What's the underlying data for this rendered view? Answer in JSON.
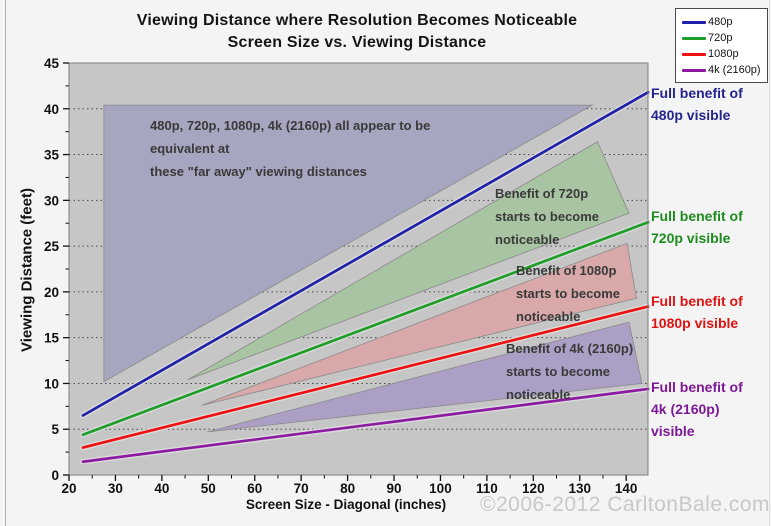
{
  "title": {
    "line1": "Viewing Distance where Resolution Becomes Noticeable",
    "line2": "Screen Size vs. Viewing Distance"
  },
  "watermark": "©2006-2012 CarltonBale.com",
  "legend": {
    "entries": [
      {
        "label": "480p",
        "color": "#2020a8"
      },
      {
        "label": "720p",
        "color": "#1e9e28"
      },
      {
        "label": "1080p",
        "color": "#ee1111"
      },
      {
        "label": "4k (2160p)",
        "color": "#8c1aa0"
      }
    ]
  },
  "chart_data": {
    "type": "line",
    "title": "Viewing Distance where Resolution Becomes Noticeable — Screen Size vs. Viewing Distance",
    "xlabel": "Screen Size - Diagonal (inches)",
    "ylabel": "Viewing Distance (feet)",
    "xlim": [
      20,
      144.7
    ],
    "ylim": [
      0,
      45
    ],
    "x_major_ticks": [
      20,
      30,
      40,
      50,
      60,
      70,
      80,
      90,
      100,
      110,
      120,
      130,
      140
    ],
    "x_minor_ticks": [
      25,
      35,
      45,
      55,
      65,
      75,
      85,
      95,
      105,
      115,
      125,
      135
    ],
    "y_major_ticks": [
      0,
      5,
      10,
      15,
      20,
      25,
      30,
      35,
      40,
      45
    ],
    "y_minor_ticks": [
      2.5,
      7.5,
      12.5,
      17.5,
      22.5,
      27.5,
      32.5,
      37.5,
      42.5
    ],
    "grid": "horizontal dotted lines every 5 ft",
    "legend_position": "top-right",
    "plot_bg_color": "#c6c6c6",
    "series": [
      {
        "name": "480p",
        "color": "#2020a8",
        "points": [
          [
            23,
            6.5
          ],
          [
            144.7,
            41.8
          ]
        ]
      },
      {
        "name": "720p",
        "color": "#1e9e28",
        "points": [
          [
            23,
            4.4
          ],
          [
            144.7,
            27.6
          ]
        ]
      },
      {
        "name": "1080p",
        "color": "#ee1111",
        "points": [
          [
            23,
            3.0
          ],
          [
            144.7,
            18.4
          ]
        ]
      },
      {
        "name": "4k (2160p)",
        "color": "#8c1aa0",
        "points": [
          [
            23,
            1.45
          ],
          [
            144.7,
            9.4
          ]
        ]
      }
    ],
    "regions": [
      {
        "name": "equivalent-region",
        "fill": "#a6a6c0",
        "points": [
          [
            27.5,
            40.4
          ],
          [
            132.7,
            40.4
          ],
          [
            27.5,
            10.2
          ]
        ]
      },
      {
        "name": "720p-benefit-region",
        "fill": "#a9c4a3",
        "points": [
          [
            45.6,
            10.4
          ],
          [
            133.8,
            36.4
          ],
          [
            140.6,
            28.6
          ]
        ]
      },
      {
        "name": "1080p-benefit-region",
        "fill": "#d9a8a8",
        "points": [
          [
            48.6,
            7.6
          ],
          [
            140.2,
            25.3
          ],
          [
            142.2,
            19.3
          ]
        ]
      },
      {
        "name": "4k-benefit-region",
        "fill": "#ac9fc5",
        "points": [
          [
            49.7,
            4.7
          ],
          [
            140.6,
            16.7
          ],
          [
            143.4,
            10.0
          ]
        ]
      }
    ],
    "annotations": [
      {
        "id": "equivalence",
        "text": "480p, 720p, 1080p, 4k (2160p) all appear to be equivalent at\nthese \"far away\" viewing distances"
      },
      {
        "id": "720p-benefit",
        "text": "Benefit of 720p\nstarts to become\nnoticeable"
      },
      {
        "id": "1080p-benefit",
        "text": "Benefit of 1080p\nstarts to become\nnoticeable"
      },
      {
        "id": "4k-benefit",
        "text": "Benefit of 4k (2160p)\nstarts to become\nnoticeable"
      }
    ],
    "side_labels": [
      {
        "id": "480p",
        "text": "Full benefit of\n480p visible",
        "color": "#24248f"
      },
      {
        "id": "720p",
        "text": "Full benefit of\n720p visible",
        "color": "#1e8c1e"
      },
      {
        "id": "1080p",
        "text": "Full benefit of\n1080p visible",
        "color": "#e01212"
      },
      {
        "id": "4k",
        "text": "Full benefit of\n4k (2160p)\nvisible",
        "color": "#7d1996"
      }
    ]
  }
}
